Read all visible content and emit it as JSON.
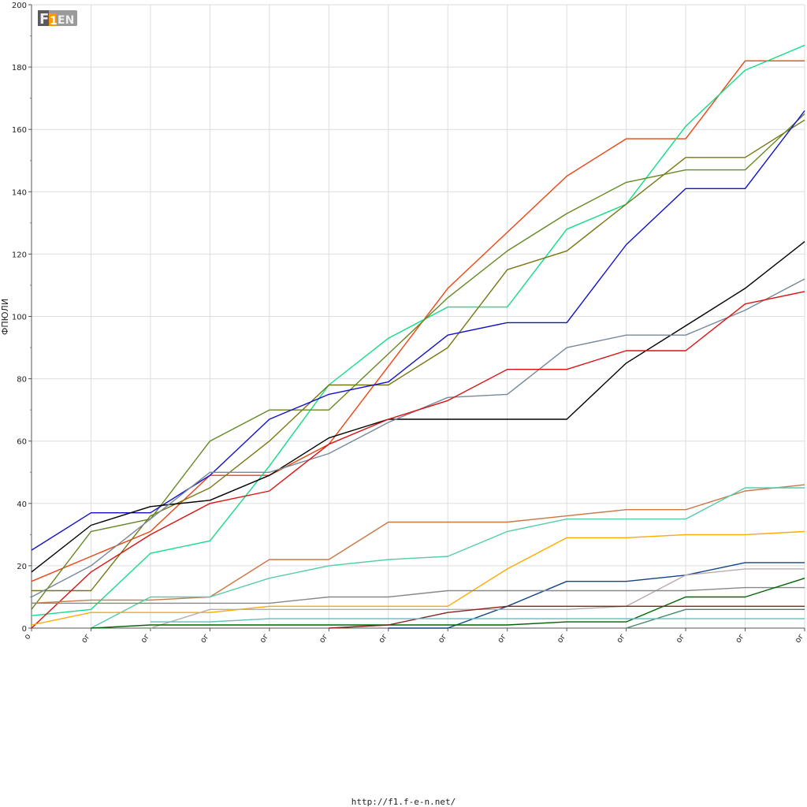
{
  "footer_url": "http://f1.f-e-n.net/",
  "logo": {
    "text": "F1EN",
    "icon": "fen-logo"
  },
  "chart_data": {
    "type": "line",
    "title": "",
    "xlabel": "",
    "ylabel": "ФПЮЛИ",
    "ylim": [
      0,
      200
    ],
    "yticks": [
      0,
      20,
      40,
      60,
      80,
      100,
      120,
      140,
      160,
      180,
      200
    ],
    "grid": true,
    "legend": "none",
    "x": [
      0,
      1,
      2,
      3,
      4,
      5,
      6,
      7,
      8,
      9,
      10,
      11,
      12,
      13
    ],
    "xtick_labels": [
      "o",
      "oг",
      "oг",
      "oг",
      "oг",
      "oг",
      "oг",
      "oг",
      "oг",
      "oг",
      "oг",
      "oг",
      "oг",
      "oг"
    ],
    "series": [
      {
        "color": "#ee4411",
        "values": [
          15,
          23,
          31,
          49,
          49,
          59,
          84,
          109,
          127,
          145,
          157,
          157,
          182,
          182
        ]
      },
      {
        "color": "#11dd88",
        "values": [
          4,
          6,
          24,
          28,
          52,
          78,
          93,
          103,
          103,
          128,
          136,
          161,
          179,
          187
        ]
      },
      {
        "color": "#777711",
        "values": [
          12,
          12,
          36,
          45,
          60,
          78,
          78,
          90,
          115,
          121,
          136,
          151,
          151,
          163
        ]
      },
      {
        "color": "#668822",
        "values": [
          6,
          31,
          35,
          60,
          70,
          70,
          88,
          106,
          121,
          133,
          143,
          147,
          147,
          165
        ]
      },
      {
        "color": "#1111cc",
        "values": [
          25,
          37,
          37,
          49,
          67,
          75,
          79,
          94,
          98,
          98,
          123,
          141,
          141,
          166
        ]
      },
      {
        "color": "#000000",
        "values": [
          18,
          33,
          39,
          41,
          49,
          61,
          67,
          67,
          67,
          67,
          85,
          97,
          109,
          124
        ]
      },
      {
        "color": "#778899",
        "values": [
          10,
          20,
          35,
          50,
          50,
          56,
          66,
          74,
          75,
          90,
          94,
          94,
          102,
          112
        ]
      },
      {
        "color": "#dd1111",
        "values": [
          0,
          18,
          30,
          40,
          44,
          59,
          67,
          73,
          83,
          83,
          89,
          89,
          104,
          108
        ]
      },
      {
        "color": "#cc7744",
        "values": [
          8,
          9,
          9,
          10,
          22,
          22,
          34,
          34,
          34,
          36,
          38,
          38,
          44,
          46
        ]
      },
      {
        "color": "#55ccaa",
        "values": [
          null,
          0,
          10,
          10,
          16,
          20,
          22,
          23,
          31,
          35,
          35,
          35,
          45,
          45
        ]
      },
      {
        "color": "#ffaa00",
        "values": [
          1,
          5,
          5,
          5,
          7,
          7,
          7,
          7,
          19,
          29,
          29,
          30,
          30,
          31
        ]
      },
      {
        "color": "#114488",
        "values": [
          null,
          null,
          null,
          null,
          null,
          null,
          0,
          0,
          7,
          15,
          15,
          17,
          21,
          21
        ]
      },
      {
        "color": "#bbaaaa",
        "values": [
          null,
          null,
          0,
          6,
          6,
          6,
          6,
          6,
          6,
          6,
          7,
          17,
          19,
          19
        ]
      },
      {
        "color": "#888888",
        "values": [
          8,
          8,
          8,
          8,
          8,
          10,
          10,
          12,
          12,
          12,
          12,
          12,
          13,
          13
        ]
      },
      {
        "color": "#006600",
        "values": [
          null,
          0,
          1,
          1,
          1,
          1,
          1,
          1,
          1,
          2,
          2,
          10,
          10,
          16
        ]
      },
      {
        "color": "#882222",
        "values": [
          null,
          null,
          null,
          null,
          null,
          0,
          1,
          5,
          7,
          7,
          7,
          7,
          7,
          7
        ]
      },
      {
        "color": "#448866",
        "values": [
          null,
          null,
          null,
          null,
          null,
          null,
          null,
          null,
          null,
          null,
          0,
          6,
          6,
          6
        ]
      },
      {
        "color": "#66bbbb",
        "values": [
          null,
          null,
          2,
          2,
          3,
          3,
          3,
          3,
          3,
          3,
          3,
          3,
          3,
          3
        ]
      }
    ]
  }
}
